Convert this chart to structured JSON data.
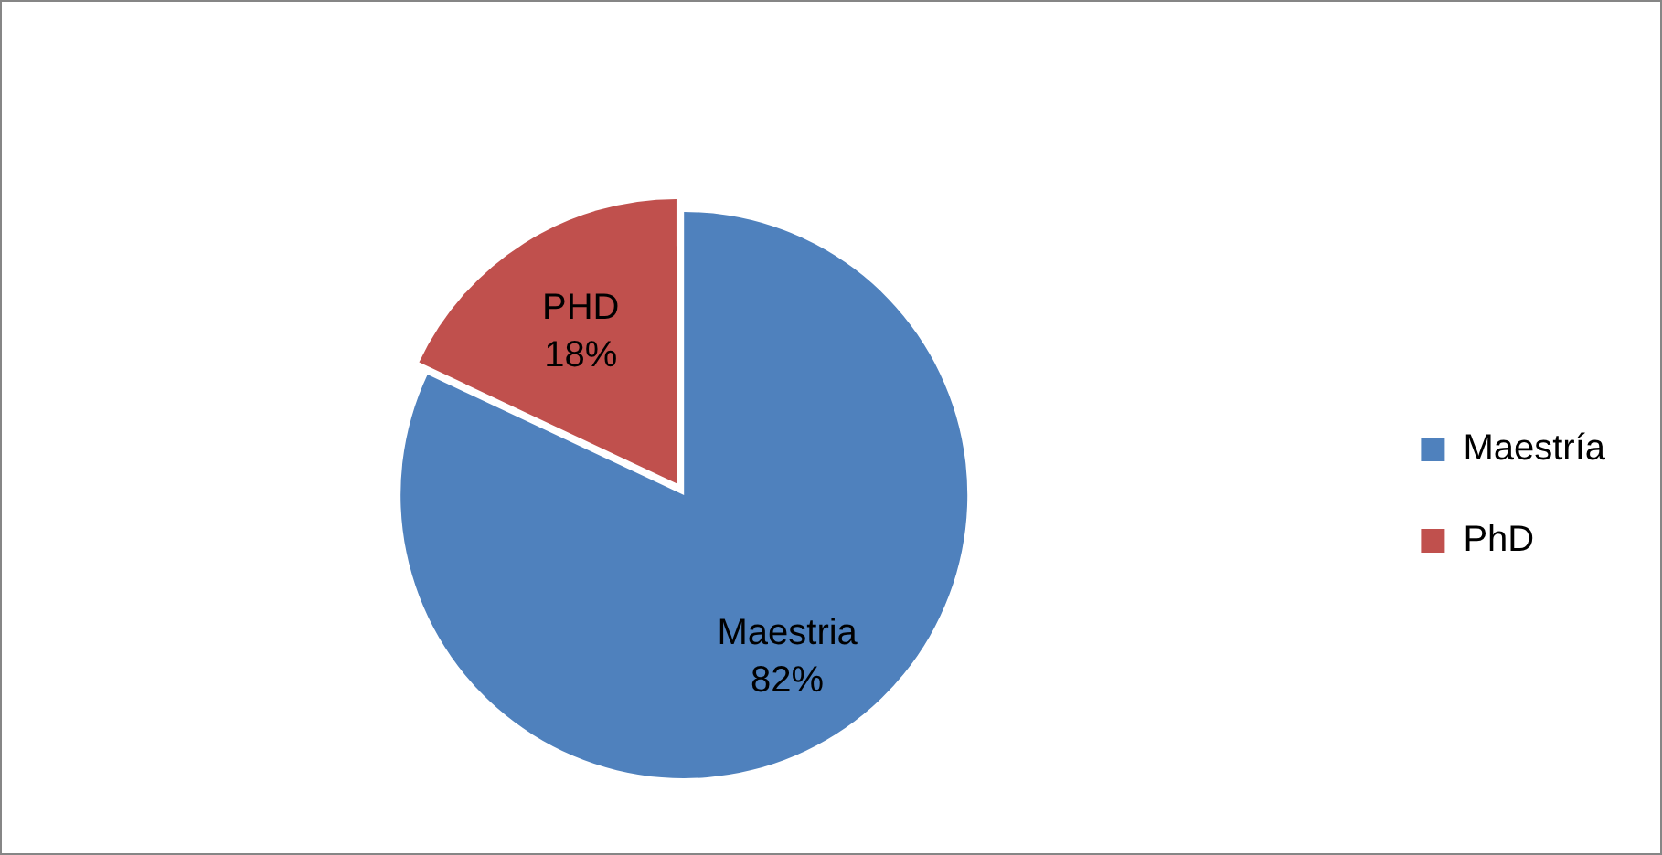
{
  "chart_data": {
    "type": "pie",
    "categories": [
      "Maestría",
      "PhD"
    ],
    "values": [
      82,
      18
    ],
    "colors": [
      "#4f81bd",
      "#c0504d"
    ],
    "value_labels": [
      "Maestria\n82%",
      "PHD\n18%"
    ],
    "legend": "right"
  }
}
